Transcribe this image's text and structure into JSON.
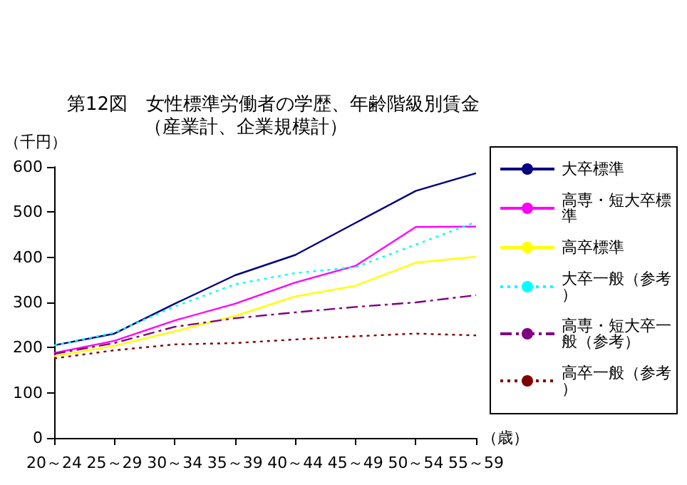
{
  "chart_data": {
    "type": "line",
    "title": "第12図　女性標準労働者の学歴、年齢階級別賃金",
    "subtitle": "（産業計、企業規模計）",
    "ylabel": "（千円）",
    "xlabel": "（歳）",
    "categories": [
      "20～24",
      "25～29",
      "30～34",
      "35～39",
      "40～44",
      "45～49",
      "50～54",
      "55～59"
    ],
    "series": [
      {
        "name": "大卒標準",
        "color": "#000080",
        "line_style": "solid",
        "values": [
          205,
          231,
          297,
          360,
          405,
          476,
          547,
          586
        ]
      },
      {
        "name": "高専・短大卒標準",
        "color": "#ff00ff",
        "line_style": "solid",
        "values": [
          188,
          215,
          260,
          297,
          344,
          381,
          467,
          468
        ]
      },
      {
        "name": "高卒標準",
        "color": "#ffff00",
        "line_style": "solid",
        "values": [
          181,
          204,
          236,
          270,
          313,
          337,
          388,
          401
        ]
      },
      {
        "name": "大卒一般（参考）",
        "color": "#00ffff",
        "line_style": "dotted",
        "values": [
          205,
          233,
          291,
          340,
          365,
          378,
          428,
          478
        ]
      },
      {
        "name": "高専・短大卒一般（参考）",
        "color": "#800080",
        "line_style": "dashdot",
        "values": [
          186,
          210,
          246,
          265,
          278,
          290,
          300,
          316
        ]
      },
      {
        "name": "高卒一般（参考）",
        "color": "#800000",
        "line_style": "dotted",
        "values": [
          176,
          194,
          207,
          210,
          218,
          225,
          231,
          227
        ]
      }
    ],
    "ylim": [
      0,
      600
    ],
    "yticks": [
      0,
      100,
      200,
      300,
      400,
      500,
      600
    ],
    "grid": false,
    "legend": "right",
    "marker": "none"
  }
}
